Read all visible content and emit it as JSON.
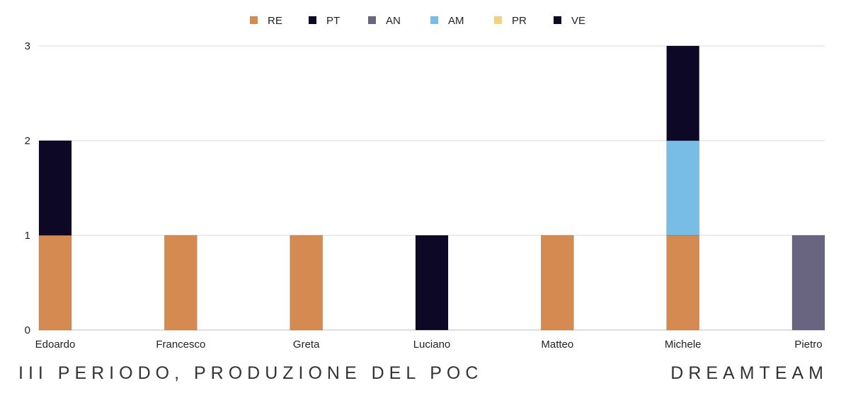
{
  "chart_data": {
    "type": "bar",
    "stacked": true,
    "categories": [
      "Edoardo",
      "Francesco",
      "Greta",
      "Luciano",
      "Matteo",
      "Michele",
      "Pietro"
    ],
    "series": [
      {
        "name": "RE",
        "color": "#d48a51",
        "values": [
          1,
          1,
          1,
          0,
          1,
          1,
          0
        ]
      },
      {
        "name": "PT",
        "color": "#0d0826",
        "values": [
          0,
          0,
          0,
          1,
          0,
          0,
          0
        ]
      },
      {
        "name": "AN",
        "color": "#696580",
        "values": [
          0,
          0,
          0,
          0,
          0,
          0,
          1
        ]
      },
      {
        "name": "AM",
        "color": "#78bde6",
        "values": [
          0,
          0,
          0,
          0,
          0,
          1,
          0
        ]
      },
      {
        "name": "PR",
        "color": "#f2d27e",
        "values": [
          0,
          0,
          0,
          0,
          0,
          0,
          0
        ]
      },
      {
        "name": "VE",
        "color": "#0d0826",
        "values": [
          1,
          0,
          0,
          0,
          0,
          1,
          0
        ]
      }
    ],
    "ylim": [
      0,
      3
    ],
    "yticks": [
      0,
      1,
      2,
      3
    ],
    "grid": true,
    "legend_position": "top-center"
  },
  "footer": {
    "left": "III PERIODO, PRODUZIONE DEL POC",
    "right": "DREAMTEAM"
  }
}
